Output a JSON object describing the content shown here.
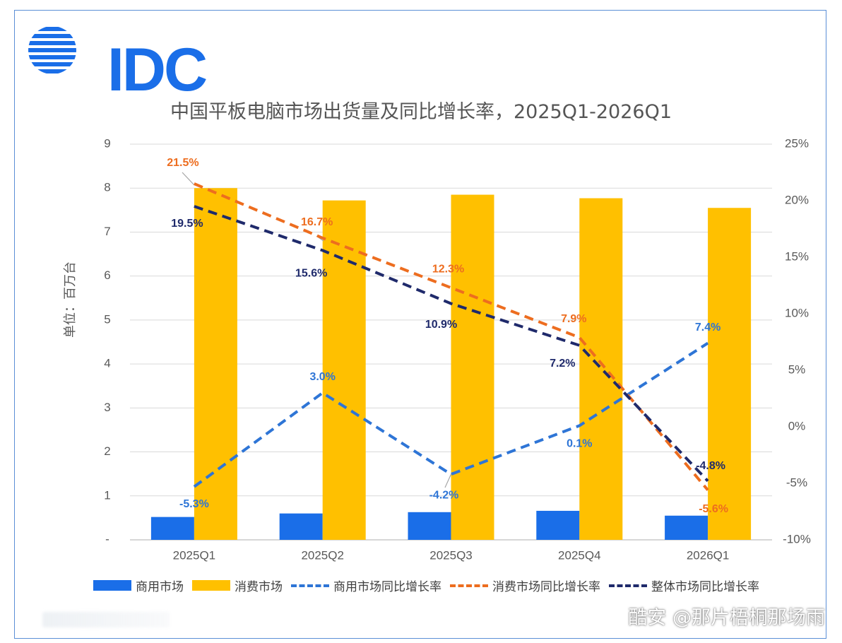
{
  "logo": {
    "text": "IDC",
    "color": "#1a6ee8"
  },
  "title": "中国平板电脑市场出货量及同比增长率，2025Q1-2026Q1",
  "watermark": "酷安 @那片梧桐那场雨",
  "legend": [
    {
      "label": "商用市场",
      "kind": "box",
      "color": "#1a6ee8"
    },
    {
      "label": "消费市场",
      "kind": "box",
      "color": "#ffc000"
    },
    {
      "label": "商用市场同比增长率",
      "kind": "line",
      "color": "#2e75d6"
    },
    {
      "label": "消费市场同比增长率",
      "kind": "line",
      "color": "#ed6d1f"
    },
    {
      "label": "整体市场同比增长率",
      "kind": "line",
      "color": "#1f2a6b"
    }
  ],
  "chart_data": {
    "type": "bar",
    "title": "中国平板电脑市场出货量及同比增长率，2025Q1-2026Q1",
    "ylabel": "单位：百万台",
    "categories": [
      "2025Q1",
      "2025Q2",
      "2025Q3",
      "2025Q4",
      "2026Q1"
    ],
    "ylim": [
      0,
      9
    ],
    "y_ticks": [
      "-",
      "1",
      "2",
      "3",
      "4",
      "5",
      "6",
      "7",
      "8",
      "9"
    ],
    "y2lim": [
      -10,
      25
    ],
    "y2_ticks": [
      "-10%",
      "-5%",
      "0%",
      "5%",
      "10%",
      "15%",
      "20%",
      "25%"
    ],
    "grid": true,
    "legend_position": "bottom",
    "bar_series": [
      {
        "name": "商用市场",
        "color": "#1a6ee8",
        "values": [
          0.52,
          0.6,
          0.63,
          0.66,
          0.55
        ]
      },
      {
        "name": "消费市场",
        "color": "#ffc000",
        "values": [
          8.0,
          7.72,
          7.85,
          7.77,
          7.55
        ]
      }
    ],
    "line_series": [
      {
        "name": "商用市场同比增长率",
        "color": "#2e75d6",
        "axis": "right",
        "values": [
          -5.3,
          3.0,
          -4.2,
          0.1,
          7.4
        ],
        "labels": [
          "-5.3%",
          "3.0%",
          "-4.2%",
          "0.1%",
          "7.4%"
        ]
      },
      {
        "name": "消费市场同比增长率",
        "color": "#ed6d1f",
        "axis": "right",
        "values": [
          21.5,
          16.7,
          12.3,
          7.9,
          -5.6
        ],
        "labels": [
          "21.5%",
          "16.7%",
          "12.3%",
          "7.9%",
          "-5.6%"
        ]
      },
      {
        "name": "整体市场同比增长率",
        "color": "#1f2a6b",
        "axis": "right",
        "values": [
          19.5,
          15.6,
          10.9,
          7.2,
          -4.8
        ],
        "labels": [
          "19.5%",
          "15.6%",
          "10.9%",
          "7.2%",
          "-4.8%"
        ]
      }
    ]
  }
}
